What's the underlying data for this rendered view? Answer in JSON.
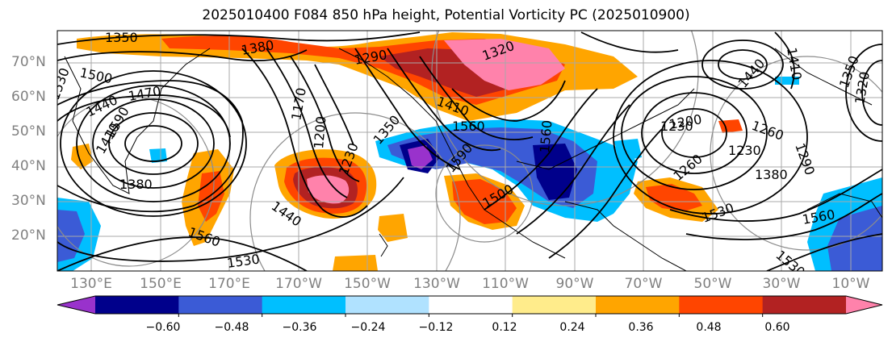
{
  "title": "2025010400 F084 850 hPa height, Potential Vorticity PC (2025010900)",
  "lat_labels": [
    "70°N",
    "60°N",
    "50°N",
    "40°N",
    "30°N",
    "20°N"
  ],
  "lon_labels": [
    "130°E",
    "150°E",
    "170°E",
    "170°W",
    "150°W",
    "130°W",
    "110°W",
    "90°W",
    "70°W",
    "50°W",
    "30°W",
    "10°W"
  ],
  "colorbar": {
    "ticks": [
      "−0.60",
      "−0.48",
      "−0.36",
      "−0.24",
      "−0.12",
      "0.12",
      "0.24",
      "0.36",
      "0.48",
      "0.60"
    ],
    "colors": [
      "#9932cc",
      "#00008b",
      "#3b5bd6",
      "#00bfff",
      "#b0e2ff",
      "#ffffff",
      "#ffec8b",
      "#ffa500",
      "#ff4500",
      "#b22222",
      "#ff82ab"
    ]
  },
  "contour_labels": [
    "1350",
    "1380",
    "1500",
    "1530",
    "1440",
    "1470",
    "1590",
    "1410",
    "1380",
    "1560",
    "1530",
    "1440",
    "1290",
    "1170",
    "1200",
    "1230",
    "1320",
    "1350",
    "1560",
    "1410",
    "1590",
    "1560",
    "1500",
    "1230",
    "1260",
    "1290",
    "1380",
    "1200",
    "1230",
    "1260",
    "1350",
    "1530",
    "1560",
    "1410",
    "1440",
    "1320",
    "1530"
  ]
}
